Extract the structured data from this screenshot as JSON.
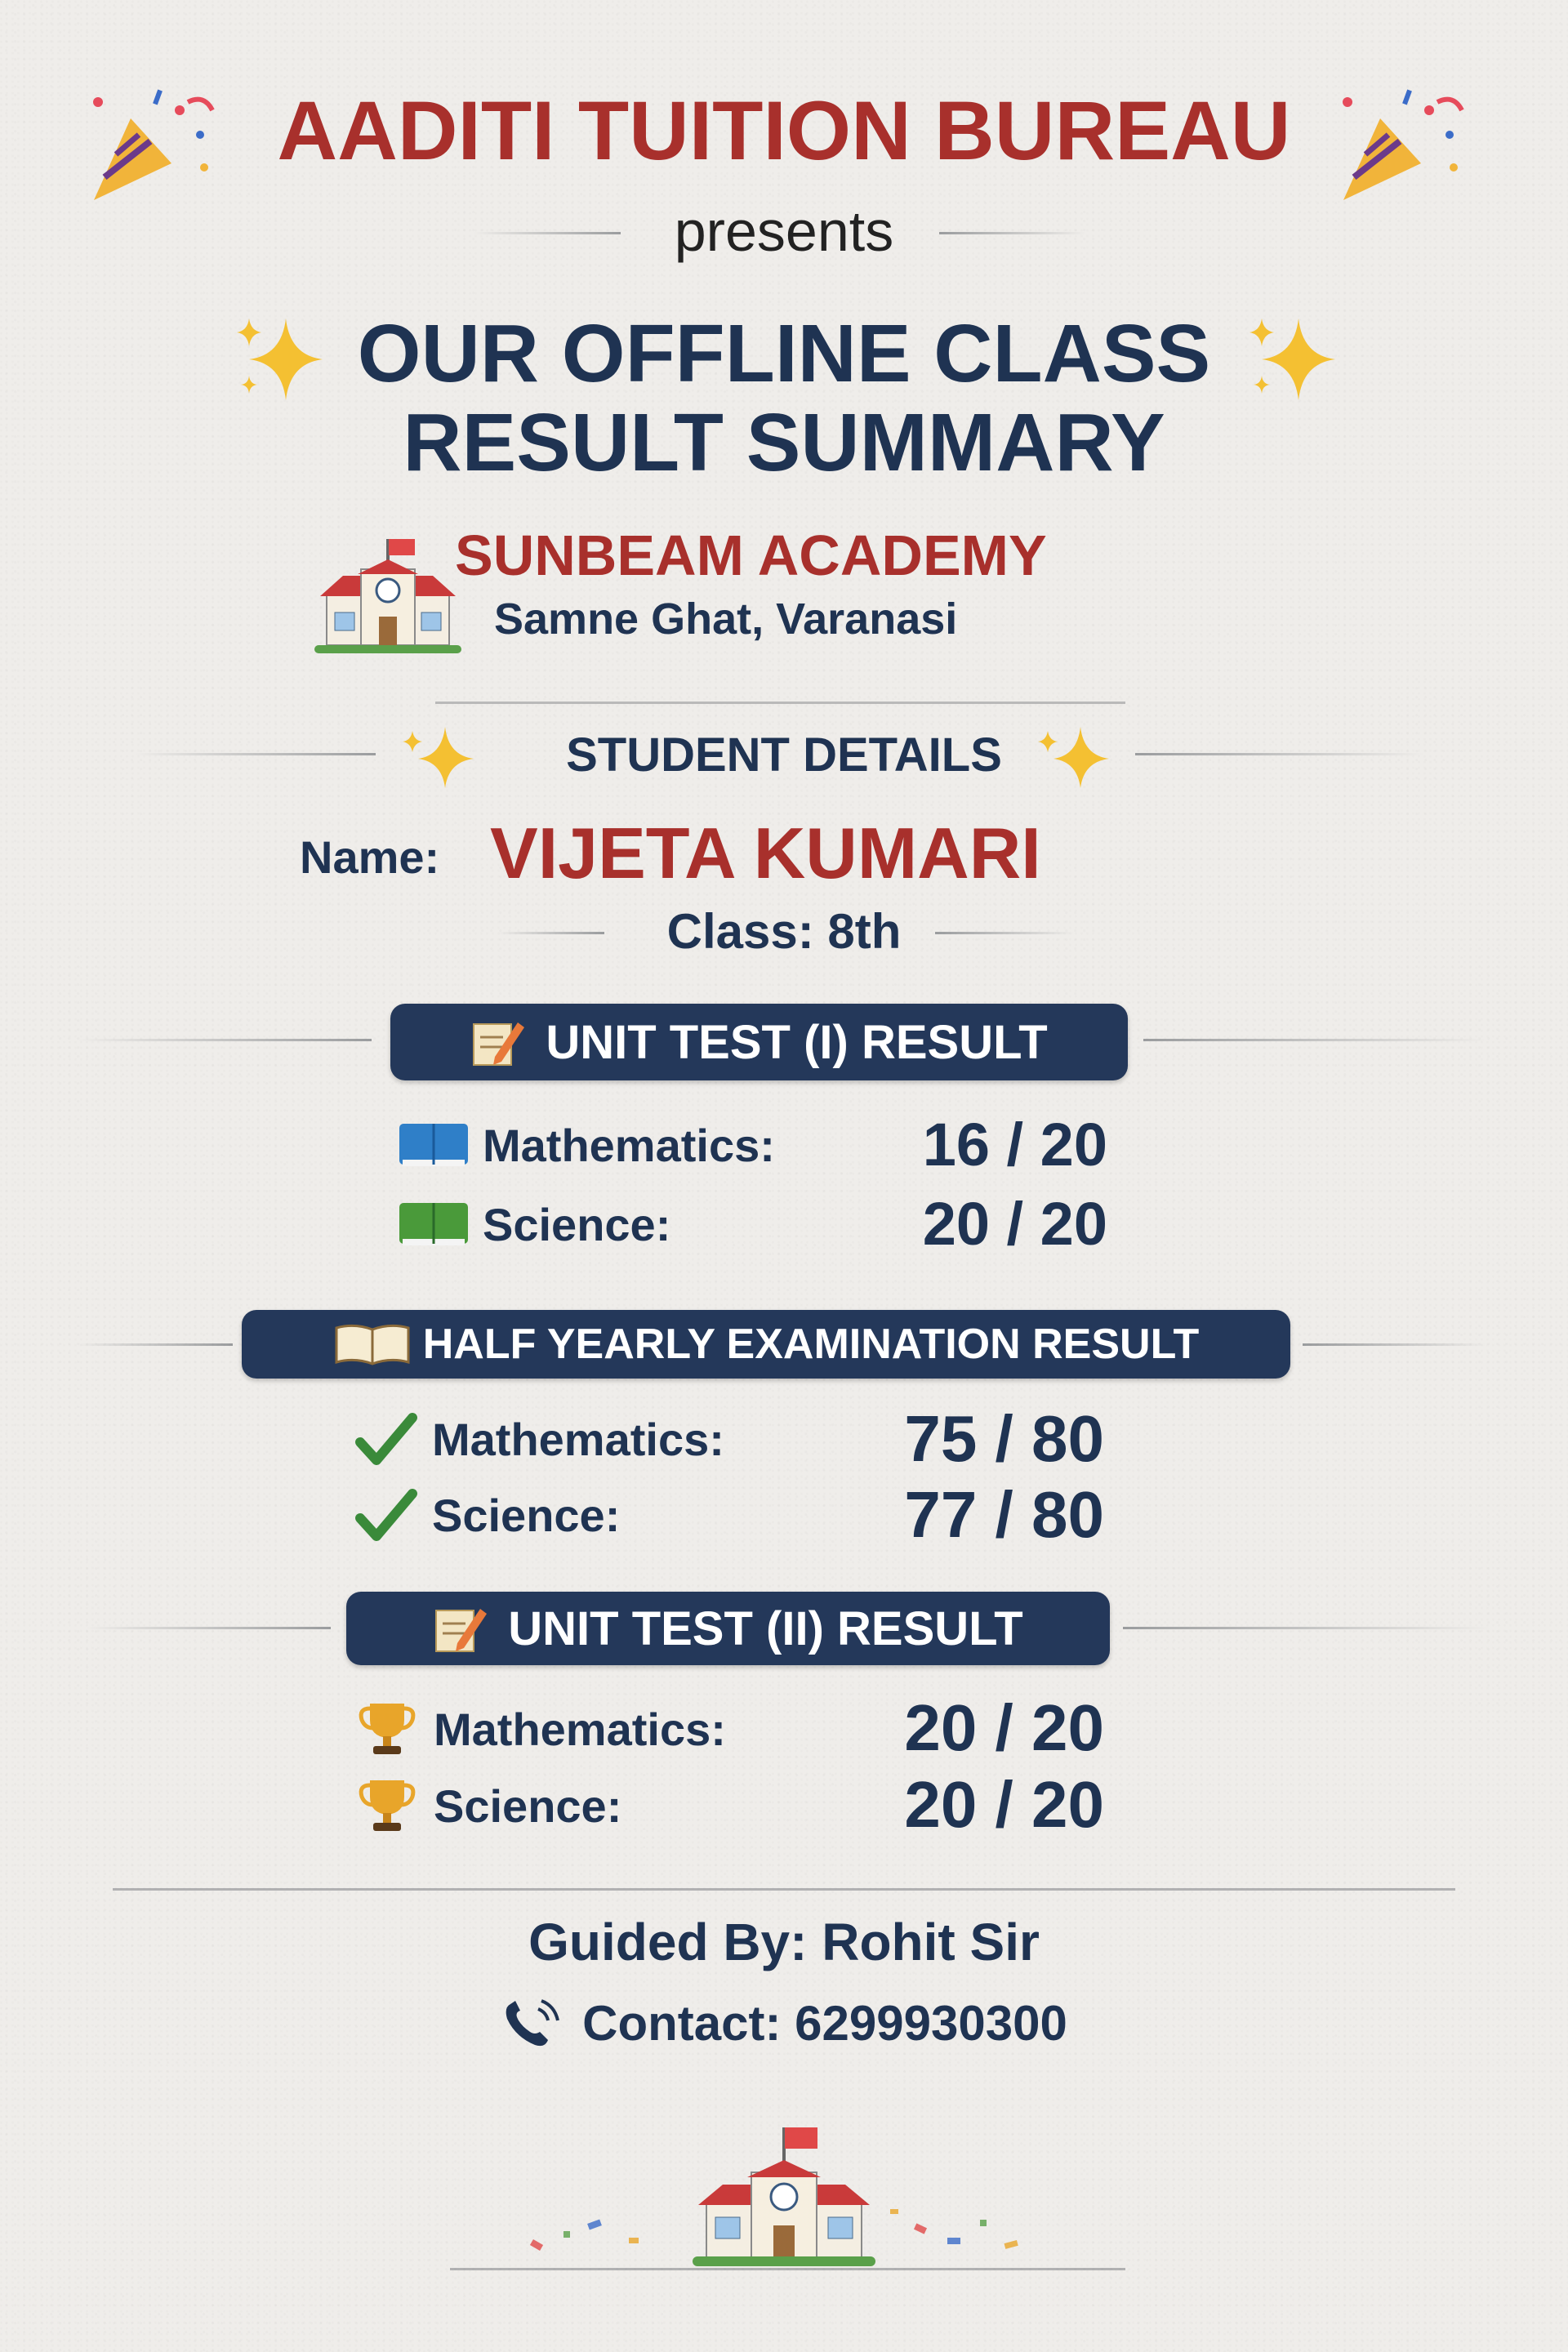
{
  "header": {
    "title": "AADITI TUITION BUREAU",
    "presents": "presents",
    "headline_line1": "OUR OFFLINE CLASS",
    "headline_line2": "RESULT SUMMARY"
  },
  "school": {
    "name": "SUNBEAM ACADEMY",
    "location": "Samne Ghat, Varanasi"
  },
  "student": {
    "section_title": "STUDENT DETAILS",
    "name_label": "Name:",
    "name": "VIJETA KUMARI",
    "class_text": "Class: 8th"
  },
  "results": [
    {
      "title": "UNIT TEST (I) RESULT",
      "icon": "memo-pencil-icon",
      "subjects": [
        {
          "label": "Mathematics:",
          "score": "16 / 20",
          "icon": "blue-book-icon"
        },
        {
          "label": "Science:",
          "score": "20 / 20",
          "icon": "green-book-icon"
        }
      ]
    },
    {
      "title": "HALF YEARLY EXAMINATION RESULT",
      "icon": "open-book-icon",
      "subjects": [
        {
          "label": "Mathematics:",
          "score": "75 / 80",
          "icon": "check-mark-icon"
        },
        {
          "label": "Science:",
          "score": "77 / 80",
          "icon": "check-mark-icon"
        }
      ]
    },
    {
      "title": "UNIT TEST (II) RESULT",
      "icon": "memo-pencil-icon",
      "subjects": [
        {
          "label": "Mathematics:",
          "score": "20 / 20",
          "icon": "trophy-icon"
        },
        {
          "label": "Science:",
          "score": "20 / 20",
          "icon": "trophy-icon"
        }
      ]
    }
  ],
  "footer": {
    "guided_by": "Guided By: Rohit Sir",
    "contact": "Contact: 6299930300"
  },
  "colors": {
    "navy": "#1f3352",
    "red": "#a8302c",
    "banner": "#24385a",
    "background": "#efedea"
  }
}
